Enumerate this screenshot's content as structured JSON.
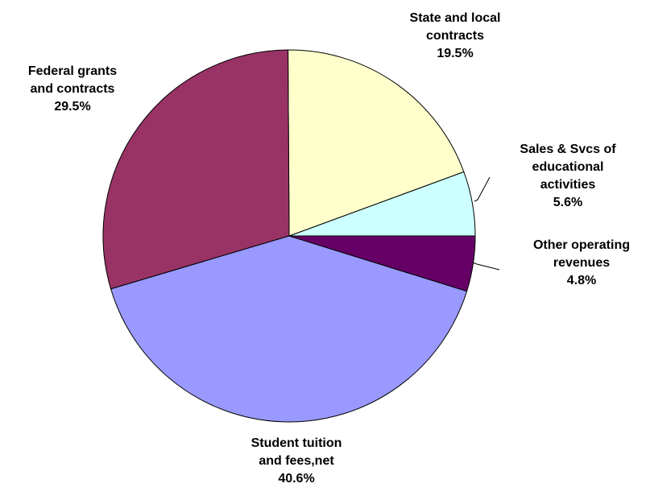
{
  "chart_data": {
    "type": "pie",
    "title": "",
    "slices": [
      {
        "label": [
          "Sales & Svcs of",
          "educational",
          "activities"
        ],
        "pct_text": "5.6%",
        "value": 5.6,
        "color": "#CCFFFF"
      },
      {
        "label": [
          "State and local",
          "contracts"
        ],
        "pct_text": "19.5%",
        "value": 19.5,
        "color": "#FFFFCC"
      },
      {
        "label": [
          "Federal grants",
          "and contracts"
        ],
        "pct_text": "29.5%",
        "value": 29.5,
        "color": "#993366"
      },
      {
        "label": [
          "Student tuition",
          "and fees,net"
        ],
        "pct_text": "40.6%",
        "value": 40.6,
        "color": "#9999FF"
      },
      {
        "label": [
          "Other operating",
          "revenues"
        ],
        "pct_text": "4.8%",
        "value": 4.8,
        "color": "#660066"
      }
    ],
    "start_direction": "3 o'clock, counter-clockwise",
    "legend": "none"
  }
}
